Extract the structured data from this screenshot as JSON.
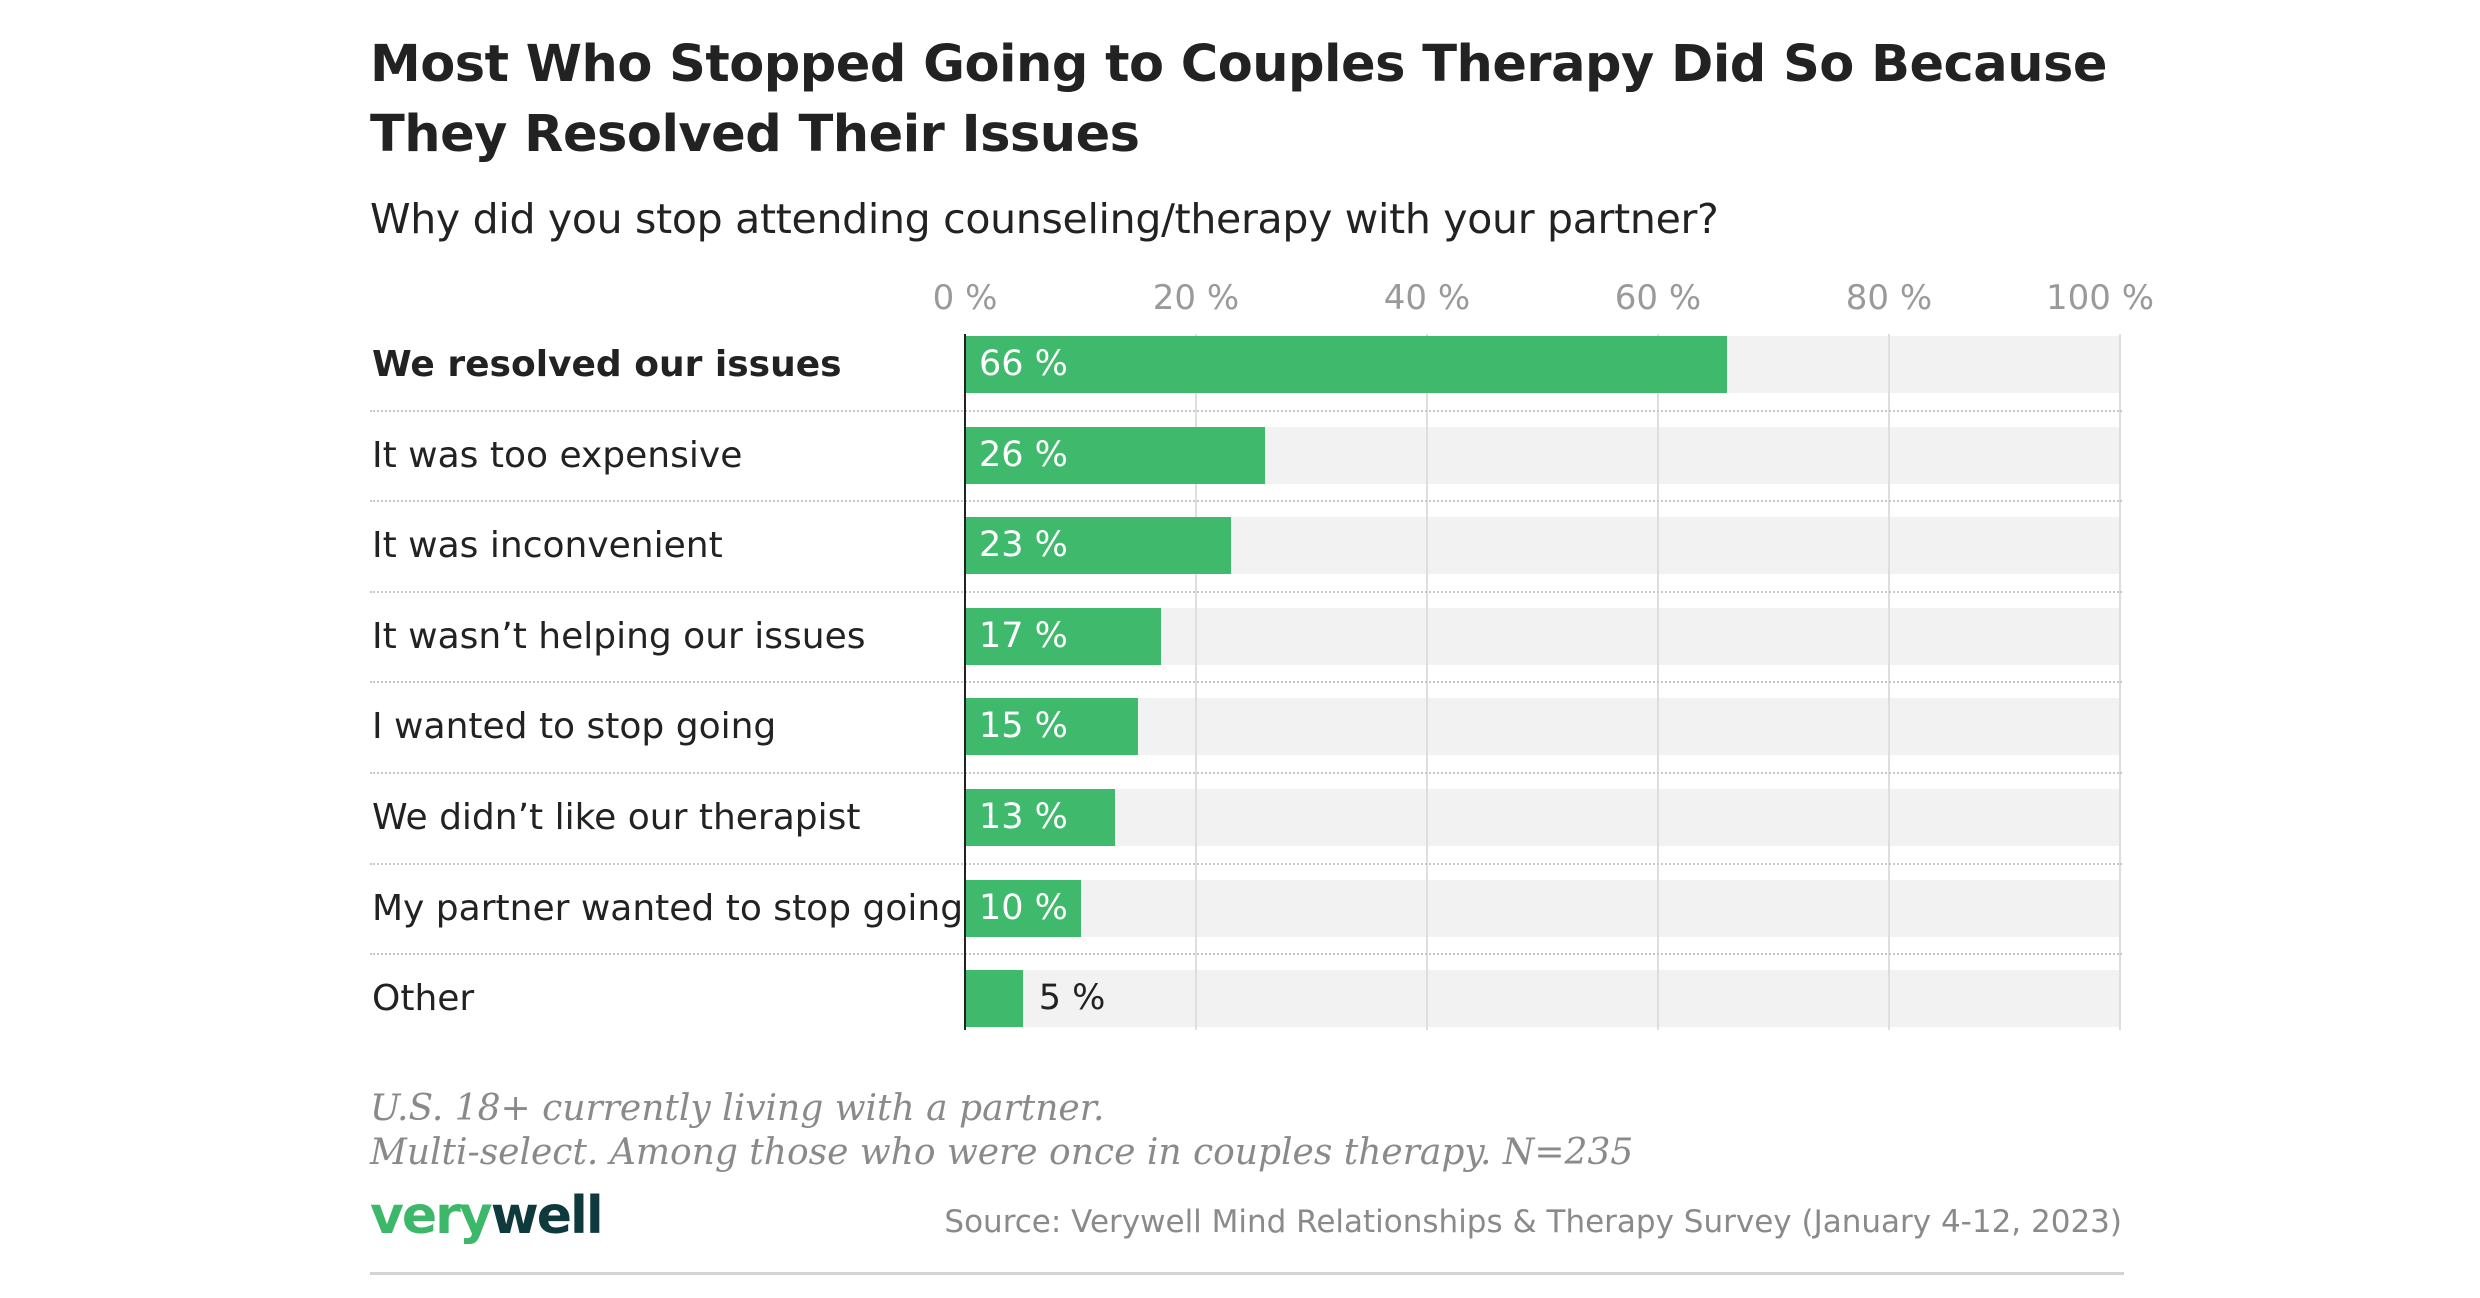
{
  "chart_data": {
    "type": "bar",
    "orientation": "horizontal",
    "title": "Most Who Stopped Going to Couples Therapy Did So Because They Resolved Their Issues",
    "subtitle": "Why did you stop attending counseling/therapy with your partner?",
    "categories": [
      "We resolved our issues",
      "It was too expensive",
      "It was inconvenient",
      "It wasn’t helping our issues",
      "I wanted to stop going",
      "We didn’t like our therapist",
      "My partner wanted to stop going",
      "Other"
    ],
    "values": [
      66,
      26,
      23,
      17,
      15,
      13,
      10,
      5
    ],
    "value_labels": [
      "66 %",
      "26 %",
      "23 %",
      "17 %",
      "15 %",
      "13 %",
      "10 %",
      "5 %"
    ],
    "xlim": [
      0,
      100
    ],
    "x_ticks": [
      "0 %",
      "20 %",
      "40 %",
      "60 %",
      "80 %",
      "100 %"
    ],
    "x_tick_values": [
      0,
      20,
      40,
      60,
      80,
      100
    ],
    "grid": true,
    "highlighted_category": "We resolved our issues",
    "colors": {
      "bar": "#3fba6c",
      "track": "#f2f2f2",
      "grid": "#dedede"
    }
  },
  "notes": [
    "U.S. 18+ currently living with a partner.",
    "Multi-select. Among those who were once in couples therapy. N=235"
  ],
  "logo": {
    "part1": "very",
    "part2": "well",
    "colors": [
      "#3db86b",
      "#0e3a3d"
    ]
  },
  "source": "Source: Verywell Mind Relationships & Therapy Survey (January 4-12, 2023)"
}
